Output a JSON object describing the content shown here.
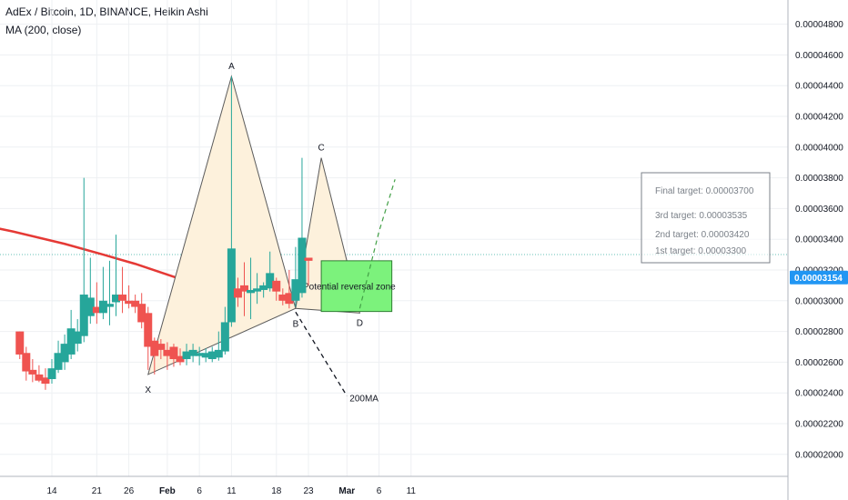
{
  "header": {
    "title": "AdEx / Bitcoin, 1D, BINANCE, Heikin Ashi",
    "indicator": "MA (200, close)"
  },
  "colors": {
    "up": "#26a69a",
    "down": "#ef5350",
    "ma": "#e53935",
    "pattern_fill": "#fdf1dc",
    "pattern_line": "#5b5b5b",
    "zone": "#7cf27c",
    "price_tag": "#2196f3"
  },
  "price_tag": "0.00003154",
  "chart_data": {
    "type": "candlestick",
    "title": "AdEx / Bitcoin, 1D, BINANCE, Heikin Ashi",
    "ylim": [
      1.87e-05,
      4.9e-05
    ],
    "y_ticks": [
      "0.00002000",
      "0.00002200",
      "0.00002400",
      "0.00002600",
      "0.00002800",
      "0.00003000",
      "0.00003200",
      "0.00003400",
      "0.00003600",
      "0.00003800",
      "0.00004000",
      "0.00004200",
      "0.00004400",
      "0.00004600",
      "0.00004800"
    ],
    "x_ticks": [
      {
        "label": "14",
        "day": 14
      },
      {
        "label": "21",
        "day": 21
      },
      {
        "label": "26",
        "day": 26
      },
      {
        "label": "Feb",
        "day": 32
      },
      {
        "label": "6",
        "day": 37
      },
      {
        "label": "11",
        "day": 42
      },
      {
        "label": "18",
        "day": 49
      },
      {
        "label": "23",
        "day": 54
      },
      {
        "label": "Mar",
        "day": 60
      },
      {
        "label": "6",
        "day": 65
      },
      {
        "label": "11",
        "day": 70
      }
    ],
    "candles": [
      {
        "day": 9,
        "o": 2.8,
        "h": 2.8,
        "l": 2.62,
        "c": 2.65
      },
      {
        "day": 10,
        "o": 2.66,
        "h": 2.7,
        "l": 2.48,
        "c": 2.54
      },
      {
        "day": 11,
        "o": 2.55,
        "h": 2.62,
        "l": 2.47,
        "c": 2.52
      },
      {
        "day": 12,
        "o": 2.52,
        "h": 2.58,
        "l": 2.47,
        "c": 2.48
      },
      {
        "day": 13,
        "o": 2.5,
        "h": 2.56,
        "l": 2.42,
        "c": 2.46
      },
      {
        "day": 14,
        "o": 2.49,
        "h": 2.62,
        "l": 2.46,
        "c": 2.56
      },
      {
        "day": 15,
        "o": 2.55,
        "h": 2.74,
        "l": 2.53,
        "c": 2.66
      },
      {
        "day": 16,
        "o": 2.6,
        "h": 2.78,
        "l": 2.55,
        "c": 2.72
      },
      {
        "day": 17,
        "o": 2.65,
        "h": 2.94,
        "l": 2.62,
        "c": 2.82
      },
      {
        "day": 18,
        "o": 2.72,
        "h": 2.88,
        "l": 2.67,
        "c": 2.8
      },
      {
        "day": 19,
        "o": 2.77,
        "h": 3.8,
        "l": 2.73,
        "c": 3.04
      },
      {
        "day": 20,
        "o": 2.9,
        "h": 3.28,
        "l": 2.85,
        "c": 3.02
      },
      {
        "day": 21,
        "o": 2.96,
        "h": 3.12,
        "l": 2.85,
        "c": 2.92
      },
      {
        "day": 22,
        "o": 2.92,
        "h": 3.22,
        "l": 2.88,
        "c": 3.0
      },
      {
        "day": 23,
        "o": 2.96,
        "h": 3.26,
        "l": 2.84,
        "c": 2.98
      },
      {
        "day": 24,
        "o": 2.99,
        "h": 3.43,
        "l": 2.9,
        "c": 3.04
      },
      {
        "day": 25,
        "o": 3.04,
        "h": 3.22,
        "l": 2.92,
        "c": 3.0
      },
      {
        "day": 26,
        "o": 3.0,
        "h": 3.1,
        "l": 2.95,
        "c": 2.98
      },
      {
        "day": 27,
        "o": 3.0,
        "h": 3.04,
        "l": 2.92,
        "c": 2.96
      },
      {
        "day": 28,
        "o": 2.98,
        "h": 3.05,
        "l": 2.82,
        "c": 2.86
      },
      {
        "day": 29,
        "o": 2.92,
        "h": 2.96,
        "l": 2.55,
        "c": 2.7
      },
      {
        "day": 30,
        "o": 2.74,
        "h": 2.76,
        "l": 2.52,
        "c": 2.64
      },
      {
        "day": 31,
        "o": 2.72,
        "h": 2.75,
        "l": 2.62,
        "c": 2.68
      },
      {
        "day": 32,
        "o": 2.68,
        "h": 2.73,
        "l": 2.55,
        "c": 2.64
      },
      {
        "day": 33,
        "o": 2.7,
        "h": 2.72,
        "l": 2.57,
        "c": 2.62
      },
      {
        "day": 34,
        "o": 2.64,
        "h": 2.69,
        "l": 2.58,
        "c": 2.6
      },
      {
        "day": 35,
        "o": 2.62,
        "h": 2.72,
        "l": 2.58,
        "c": 2.67
      },
      {
        "day": 36,
        "o": 2.64,
        "h": 2.72,
        "l": 2.6,
        "c": 2.68
      },
      {
        "day": 37,
        "o": 2.64,
        "h": 2.7,
        "l": 2.58,
        "c": 2.66
      },
      {
        "day": 38,
        "o": 2.63,
        "h": 2.69,
        "l": 2.6,
        "c": 2.66
      },
      {
        "day": 39,
        "o": 2.62,
        "h": 2.7,
        "l": 2.6,
        "c": 2.67
      },
      {
        "day": 40,
        "o": 2.63,
        "h": 2.8,
        "l": 2.61,
        "c": 2.68
      },
      {
        "day": 41,
        "o": 2.67,
        "h": 2.96,
        "l": 2.65,
        "c": 2.86
      },
      {
        "day": 42,
        "o": 2.86,
        "h": 4.46,
        "l": 2.83,
        "c": 3.34
      },
      {
        "day": 43,
        "o": 3.08,
        "h": 3.15,
        "l": 2.96,
        "c": 3.02
      },
      {
        "day": 44,
        "o": 3.1,
        "h": 3.25,
        "l": 2.9,
        "c": 3.06
      },
      {
        "day": 45,
        "o": 3.05,
        "h": 3.28,
        "l": 2.88,
        "c": 3.07
      },
      {
        "day": 46,
        "o": 3.06,
        "h": 3.18,
        "l": 2.98,
        "c": 3.08
      },
      {
        "day": 47,
        "o": 3.07,
        "h": 3.12,
        "l": 3.02,
        "c": 3.1
      },
      {
        "day": 48,
        "o": 3.08,
        "h": 3.32,
        "l": 3.06,
        "c": 3.18
      },
      {
        "day": 49,
        "o": 3.13,
        "h": 3.15,
        "l": 3.0,
        "c": 3.06
      },
      {
        "day": 50,
        "o": 3.04,
        "h": 3.08,
        "l": 2.97,
        "c": 3.0
      },
      {
        "day": 51,
        "o": 3.05,
        "h": 3.2,
        "l": 2.95,
        "c": 2.98
      },
      {
        "day": 52,
        "o": 3.0,
        "h": 3.35,
        "l": 2.96,
        "c": 3.14
      },
      {
        "day": 53,
        "o": 3.05,
        "h": 3.93,
        "l": 3.02,
        "c": 3.41
      },
      {
        "day": 54,
        "o": 3.28,
        "h": 3.28,
        "l": 3.1,
        "c": 3.26
      }
    ],
    "ma200": [
      {
        "day": 0,
        "v": 3.52
      },
      {
        "day": 8,
        "v": 3.45
      },
      {
        "day": 16,
        "v": 3.37
      },
      {
        "day": 22,
        "v": 3.3
      },
      {
        "day": 27,
        "v": 3.24
      },
      {
        "day": 32,
        "v": 3.17
      },
      {
        "day": 37,
        "v": 3.1
      },
      {
        "day": 42,
        "v": 3.05
      },
      {
        "day": 47,
        "v": 3.0
      },
      {
        "day": 52,
        "v": 2.97
      },
      {
        "day": 57,
        "v": 2.96
      }
    ],
    "pattern": {
      "X": {
        "label": "X",
        "day": 29,
        "v": 2.52
      },
      "A": {
        "label": "A",
        "day": 42,
        "v": 4.46
      },
      "B": {
        "label": "B",
        "day": 52,
        "v": 2.95
      },
      "C": {
        "label": "C",
        "day": 56,
        "v": 3.93
      },
      "D": {
        "label": "D",
        "day": 62,
        "v": 2.92
      }
    },
    "ma_label": "200MA",
    "zone": {
      "label": "Potential reversal zone",
      "day_from": 56,
      "day_to": 67,
      "top": 3.26,
      "bottom": 2.93
    },
    "targets_box": {
      "final": "Final target: 0.00003700",
      "third": "3rd target: 0.00003535",
      "second": "2nd target: 0.00003420",
      "first": "1st target: 0.00003300"
    },
    "current_price": 3.154
  }
}
